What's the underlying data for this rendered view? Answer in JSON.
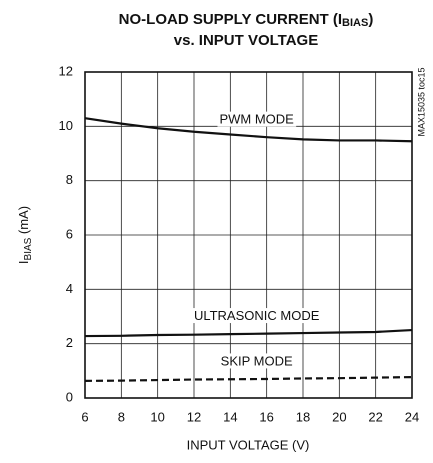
{
  "chart_data": {
    "type": "line",
    "title": {
      "line1": [
        "NO-LOAD SUPPLY CURRENT (I",
        "BIAS",
        ")"
      ],
      "line2": "vs. INPUT VOLTAGE"
    },
    "y_label": [
      "I",
      "BIAS",
      " (mA)"
    ],
    "x_label": "INPUT VOLTAGE (V)",
    "side_note": "MAX15035 toc15",
    "x": [
      6,
      8,
      10,
      12,
      14,
      16,
      18,
      20,
      22,
      24
    ],
    "series": [
      {
        "name": "PWM MODE",
        "color": "#111111",
        "dash": false,
        "values": [
          10.3,
          10.1,
          9.93,
          9.8,
          9.7,
          9.6,
          9.52,
          9.48,
          9.48,
          9.45
        ]
      },
      {
        "name": "ULTRASONIC MODE",
        "color": "#111111",
        "dash": false,
        "values": [
          2.28,
          2.29,
          2.32,
          2.33,
          2.35,
          2.37,
          2.39,
          2.41,
          2.43,
          2.5
        ]
      },
      {
        "name": "SKIP MODE",
        "color": "#111111",
        "dash": true,
        "values": [
          0.63,
          0.64,
          0.66,
          0.68,
          0.69,
          0.7,
          0.72,
          0.73,
          0.75,
          0.77
        ]
      }
    ],
    "xlim": [
      6,
      24
    ],
    "xticks": [
      6,
      8,
      10,
      12,
      14,
      16,
      18,
      20,
      22,
      24
    ],
    "ylim": [
      0,
      12
    ],
    "yticks": [
      0,
      2,
      4,
      6,
      8,
      10,
      12
    ],
    "grid": true
  }
}
